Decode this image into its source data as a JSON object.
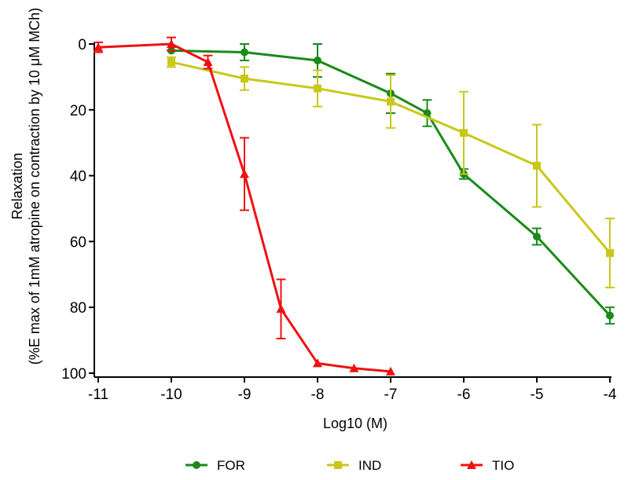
{
  "chart_data": {
    "type": "line",
    "title": "",
    "xlabel": "Log10 (M)",
    "ylabel_line1": "Relaxation",
    "ylabel_line2": "(%E max of 1mM atropine on contraction by 10 μM MCh)",
    "xlim": [
      -11,
      -4
    ],
    "ylim": [
      0,
      100
    ],
    "y_inverted": true,
    "x_ticks": [
      -11,
      -10,
      -9,
      -8,
      -7,
      -6,
      -5,
      -4
    ],
    "x_tick_labels": [
      "-11",
      "-10",
      "-9",
      "-8",
      "-7",
      "-6",
      "-5",
      "-4"
    ],
    "y_ticks": [
      0,
      20,
      40,
      60,
      80,
      100
    ],
    "y_tick_labels": [
      "0",
      "20",
      "40",
      "60",
      "80",
      "100"
    ],
    "legend_position": "bottom",
    "series": [
      {
        "name": "FOR",
        "color": "#1a8a1a",
        "marker": "circle",
        "x": [
          -10,
          -9,
          -8,
          -7,
          -6.5,
          -6,
          -5,
          -4
        ],
        "y": [
          2,
          2.5,
          5,
          15,
          21,
          39.5,
          58.5,
          82.5
        ],
        "err": [
          0,
          2.5,
          5,
          6,
          4,
          1.5,
          2.5,
          2.5
        ]
      },
      {
        "name": "IND",
        "color": "#c8c81a",
        "marker": "square",
        "x": [
          -10,
          -9,
          -8,
          -7,
          -6,
          -5,
          -4
        ],
        "y": [
          5.5,
          10.5,
          13.5,
          17.5,
          27,
          37,
          63.5
        ],
        "err": [
          1.5,
          3.5,
          5.5,
          8,
          12.5,
          12.5,
          10.5
        ]
      },
      {
        "name": "TIO",
        "color": "#ee1111",
        "marker": "triangle",
        "x": [
          -11,
          -10,
          -9.5,
          -9,
          -8.5,
          -8,
          -7.5,
          -7
        ],
        "y": [
          1,
          0,
          5.5,
          39.5,
          80.5,
          97,
          98.5,
          99.5
        ],
        "err": [
          1.5,
          2,
          2,
          11,
          9,
          0,
          0,
          0
        ]
      }
    ]
  }
}
